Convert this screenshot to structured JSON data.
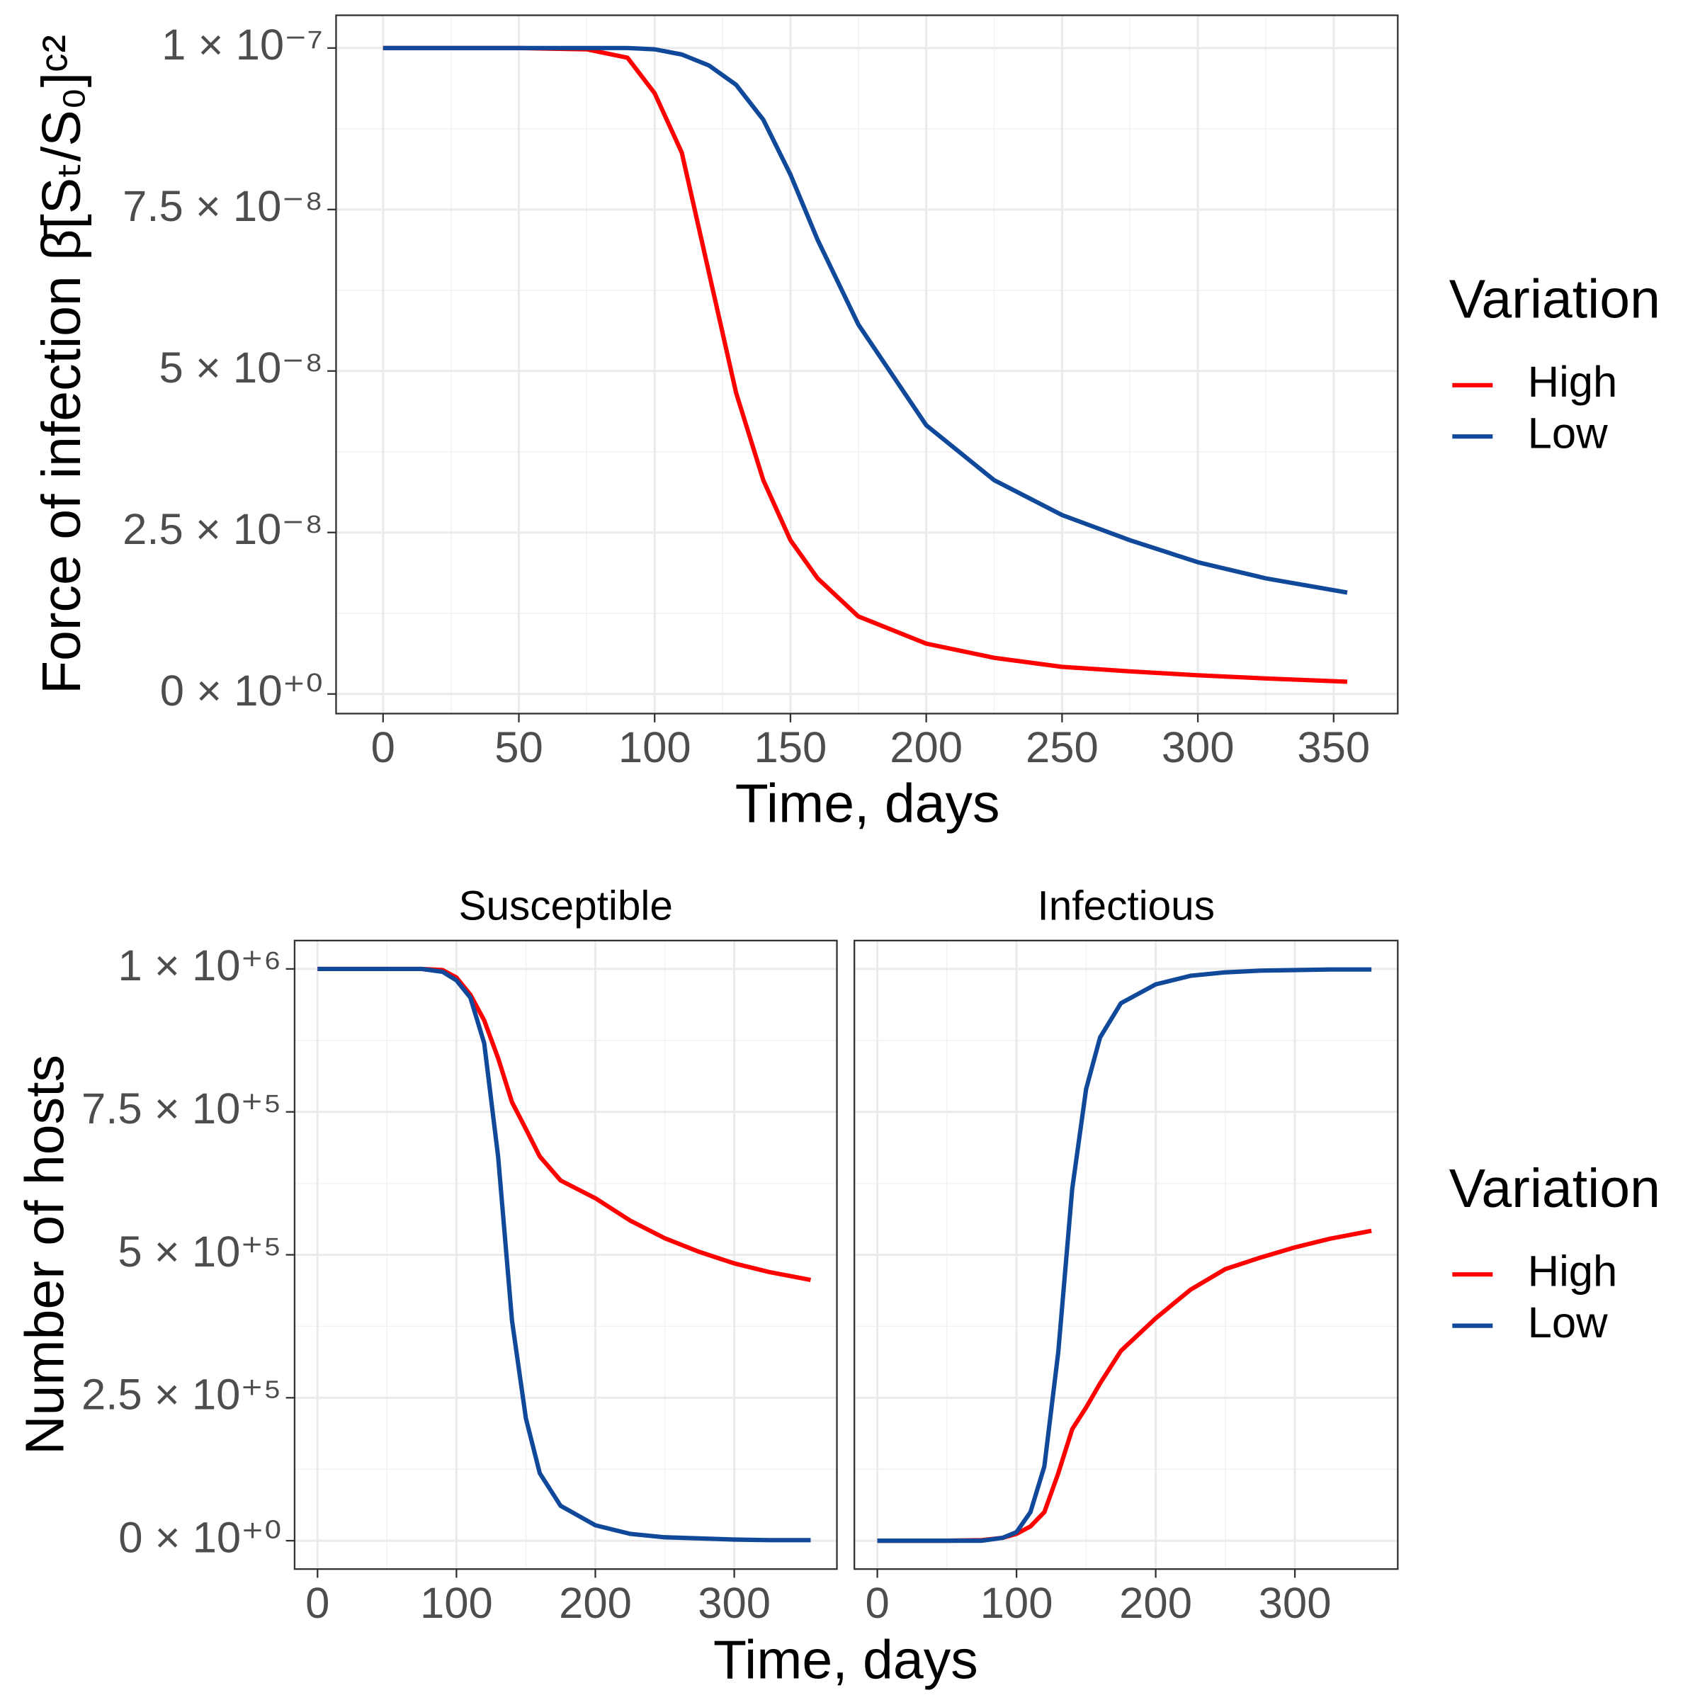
{
  "chart_data": [
    {
      "type": "line",
      "x": [
        0,
        25,
        50,
        75,
        90,
        100,
        110,
        120,
        130,
        140,
        150,
        160,
        175,
        200,
        225,
        250,
        275,
        300,
        325,
        355
      ],
      "series": [
        {
          "name": "High",
          "color": "#ff0000",
          "values": [
            1e-07,
            1e-07,
            1e-07,
            9.98e-08,
            9.85e-08,
            9.3e-08,
            8.38e-08,
            6.52e-08,
            4.66e-08,
            3.31e-08,
            2.38e-08,
            1.79e-08,
            1.2e-08,
            7.8e-09,
            5.6e-09,
            4.2e-09,
            3.5e-09,
            2.9e-09,
            2.4e-09,
            1.9e-09
          ]
        },
        {
          "name": "Low",
          "color": "#10489a",
          "values": [
            1e-07,
            1e-07,
            1e-07,
            1e-07,
            1e-07,
            9.98e-08,
            9.9e-08,
            9.73e-08,
            9.43e-08,
            8.89e-08,
            8.04e-08,
            7.03e-08,
            5.72e-08,
            4.16e-08,
            3.31e-08,
            2.77e-08,
            2.38e-08,
            2.04e-08,
            1.79e-08,
            1.57e-08
          ]
        }
      ],
      "xlim": [
        -17.3,
        373.6
      ],
      "ylim": [
        -3.04e-09,
        1.0507e-07
      ],
      "xticks": [
        0,
        50,
        100,
        150,
        200,
        250,
        300,
        350
      ],
      "yticks": [
        {
          "value": 0,
          "label": "0 × 10⁺⁰"
        },
        {
          "value": 2.5e-08,
          "label": "2.5 × 10⁻⁸"
        },
        {
          "value": 5e-08,
          "label": "5 × 10⁻⁸"
        },
        {
          "value": 7.5e-08,
          "label": "7.5 × 10⁻⁸"
        },
        {
          "value": 1e-07,
          "label": "1 × 10⁻⁷"
        }
      ],
      "xlabel": "Time, days",
      "ylabel": "Force of infection β̄[Sₜ/S₀]ᶜ²",
      "legend_title": "Variation",
      "grid": true
    },
    {
      "type": "facet_line",
      "x": [
        0,
        25,
        50,
        75,
        90,
        100,
        110,
        120,
        130,
        140,
        150,
        160,
        175,
        200,
        225,
        250,
        275,
        300,
        325,
        355
      ],
      "series": [
        {
          "name": "High",
          "color": "#ff0000"
        },
        {
          "name": "Low",
          "color": "#10489a"
        }
      ],
      "facets": [
        {
          "title": "Susceptible",
          "series_values": [
            [
              1000000,
              1000000,
              1000000,
              1000000,
              998000,
              985000,
              955000,
              910000,
              844000,
              767000,
              720000,
              672000,
              630000,
              599000,
              560000,
              529000,
              505000,
              485000,
              470000,
              456000
            ],
            [
              1000000,
              1000000,
              1000000,
              1000000,
              995000,
              980000,
              950000,
              870000,
              672000,
              385000,
              214000,
              118000,
              61000,
              27000,
              12000,
              6000,
              4000,
              2000,
              1000,
              1000
            ]
          ]
        },
        {
          "title": "Infectious",
          "series_values": [
            [
              0,
              0,
              0,
              1000,
              5000,
              12000,
              25000,
              50000,
              118000,
              195000,
              233000,
              275000,
              332000,
              389000,
              439000,
              475000,
              495000,
              513000,
              528000,
              542000
            ],
            [
              0,
              0,
              0,
              0,
              5000,
              15000,
              50000,
              130000,
              330000,
              615000,
              790000,
              880000,
              940000,
              973000,
              988000,
              994000,
              997000,
              998000,
              999000,
              999000
            ]
          ]
        }
      ],
      "xlim": [
        -16.5,
        373.9
      ],
      "ylim": [
        -49600,
        1049600
      ],
      "xticks": [
        0,
        100,
        200,
        300
      ],
      "yticks": [
        {
          "value": 0,
          "label": "0 × 10⁺⁰"
        },
        {
          "value": 250000,
          "label": "2.5 × 10⁺⁵"
        },
        {
          "value": 500000,
          "label": "5 × 10⁺⁵"
        },
        {
          "value": 750000,
          "label": "7.5 × 10⁺⁵"
        },
        {
          "value": 1000000,
          "label": "1 × 10⁺⁶"
        }
      ],
      "xlabel": "Time, days",
      "ylabel": "Number of hosts",
      "legend_title": "Variation",
      "grid": true
    }
  ]
}
